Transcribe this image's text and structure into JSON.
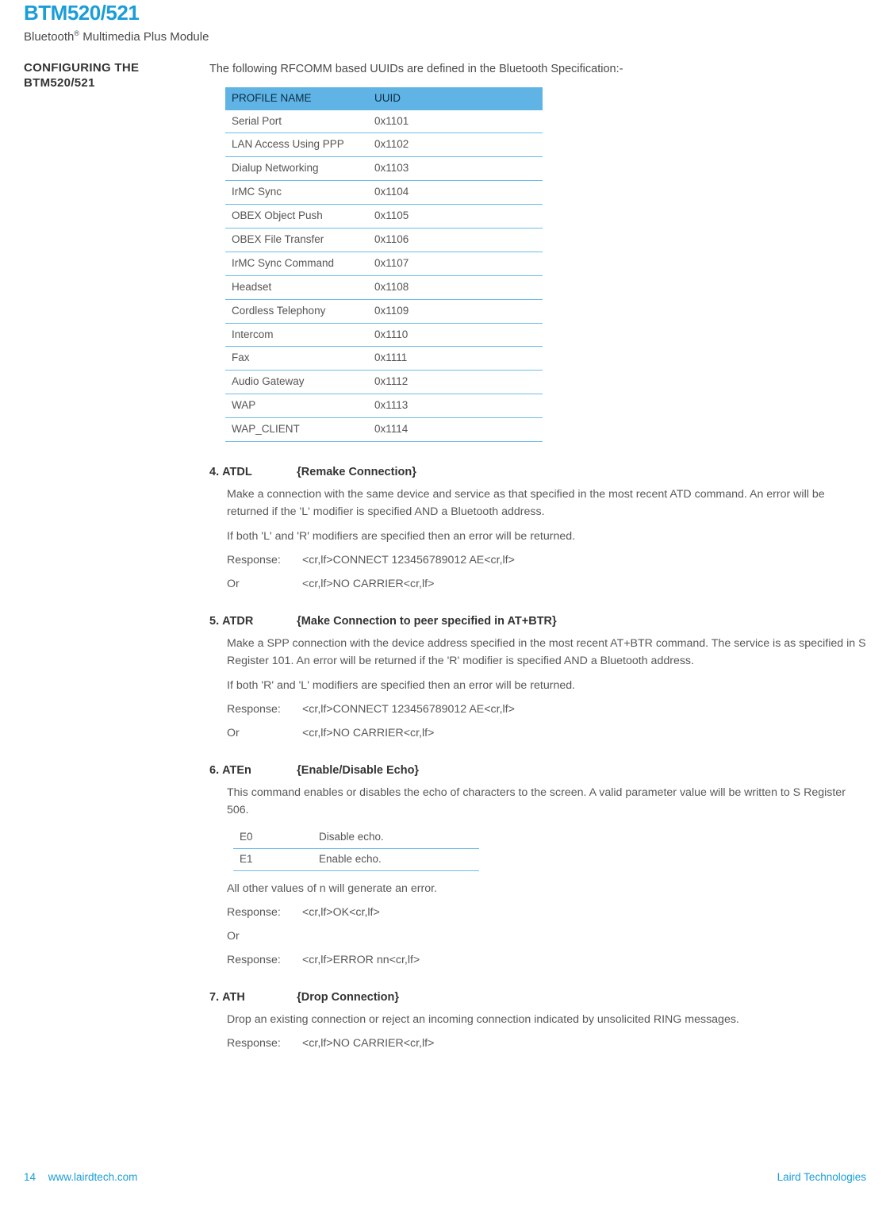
{
  "header": {
    "title": "BTM520/521",
    "subtitle_prefix": "Bluetooth",
    "subtitle_reg": "®",
    "subtitle_rest": " Multimedia Plus Module"
  },
  "section_heading": "CONFIGURING THE BTM520/521",
  "intro": "The following RFCOMM based UUIDs are defined in the Bluetooth Specification:-",
  "uuid_table": {
    "headers": [
      "PROFILE NAME",
      "UUID"
    ],
    "rows": [
      [
        "Serial Port",
        "0x1101"
      ],
      [
        "LAN Access Using PPP",
        "0x1102"
      ],
      [
        "Dialup Networking",
        "0x1103"
      ],
      [
        "IrMC Sync",
        "0x1104"
      ],
      [
        "OBEX Object Push",
        "0x1105"
      ],
      [
        "OBEX File Transfer",
        "0x1106"
      ],
      [
        "IrMC Sync Command",
        "0x1107"
      ],
      [
        "Headset",
        "0x1108"
      ],
      [
        "Cordless Telephony",
        "0x1109"
      ],
      [
        "Intercom",
        "0x1110"
      ],
      [
        "Fax",
        "0x1111"
      ],
      [
        "Audio Gateway",
        "0x1112"
      ],
      [
        "WAP",
        "0x1113"
      ],
      [
        "WAP_CLIENT",
        "0x1114"
      ]
    ]
  },
  "cmd4": {
    "num": "4.",
    "name": "ATDL",
    "brace": "{Remake Connection}",
    "p1": "Make a connection with the same device and service as that specified in the most recent ATD command. An error will be returned if the 'L' modifier is specified AND a Bluetooth address.",
    "p2": "If both 'L' and 'R' modifiers are specified then an error will be returned.",
    "resp_label": "Response:",
    "resp_val": "<cr,lf>CONNECT 123456789012 AE<cr,lf>",
    "or_label": "Or",
    "or_val": "<cr,lf>NO CARRIER<cr,lf>"
  },
  "cmd5": {
    "num": "5.",
    "name": "ATDR",
    "brace": "{Make Connection to peer specified in AT+BTR}",
    "p1": "Make a SPP connection with the device address specified in the most recent AT+BTR command. The service is as specified in S Register 101. An error will be returned if the 'R' modifier is specified AND a Bluetooth address.",
    "p2": "If both 'R' and 'L' modifiers are specified then an error will be returned.",
    "resp_label": "Response:",
    "resp_val": "<cr,lf>CONNECT 123456789012 AE<cr,lf>",
    "or_label": "Or",
    "or_val": "<cr,lf>NO CARRIER<cr,lf>"
  },
  "cmd6": {
    "num": "6.",
    "name": "ATEn",
    "brace": "{Enable/Disable Echo}",
    "p1": "This command enables or disables the echo of characters to the screen. A valid parameter value will be written to S Register 506.",
    "table": {
      "rows": [
        [
          "E0",
          "Disable echo."
        ],
        [
          "E1",
          "Enable echo."
        ]
      ]
    },
    "p2": "All other values of n will generate an error.",
    "resp_label": "Response:",
    "resp_val": "<cr,lf>OK<cr,lf>",
    "or_label": "Or",
    "resp2_label": "Response:",
    "resp2_val": "<cr,lf>ERROR nn<cr,lf>"
  },
  "cmd7": {
    "num": "7.",
    "name": "ATH",
    "brace": "{Drop Connection}",
    "p1": "Drop an existing connection or reject an incoming connection indicated by unsolicited RING messages.",
    "resp_label": "Response:",
    "resp_val": "<cr,lf>NO CARRIER<cr,lf>"
  },
  "footer": {
    "page": "14",
    "url": "www.lairdtech.com",
    "company": "Laird Technologies"
  }
}
